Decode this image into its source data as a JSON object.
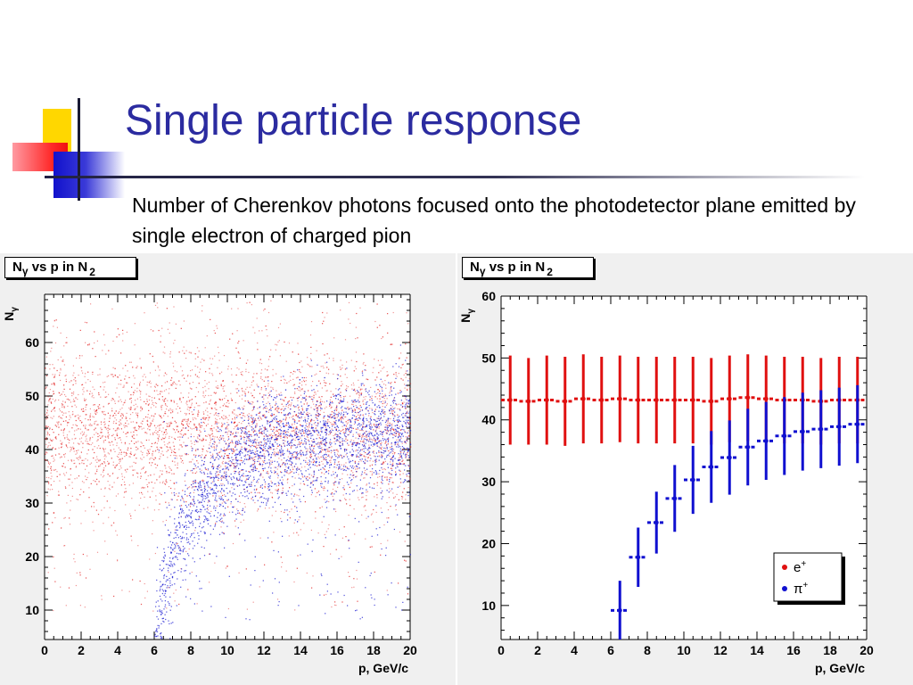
{
  "slide": {
    "title": "Single particle response",
    "subtitle": "Number of Cherenkov photons focused onto the photodetector plane emitted by single electron of charged pion"
  },
  "colors": {
    "title": "#2b2ba0",
    "electron": "#e01010",
    "pion": "#1010d0",
    "panel_bg": "#f0f0f0"
  },
  "chart_data": [
    {
      "type": "scatter",
      "title_main": "N",
      "title_sub": "γ",
      "title_rest": " vs p in N",
      "title_index": "2",
      "ylabel_main": "N",
      "ylabel_sub": "γ",
      "xlabel": "p, GeV/c",
      "xlim": [
        0,
        20
      ],
      "ylim": [
        4.5,
        69
      ],
      "xticks": [
        "0",
        "2",
        "4",
        "6",
        "8",
        "10",
        "12",
        "14",
        "16",
        "18",
        "20"
      ],
      "yticks": [
        "10",
        "20",
        "30",
        "40",
        "50",
        "60"
      ],
      "series": [
        {
          "color": "#e01010",
          "x_range": [
            0,
            20
          ],
          "y_center": 43.5,
          "y_spread": 7
        },
        {
          "color": "#1010d0",
          "onset_x": 6,
          "plateau_y": 40,
          "spread": 5
        }
      ]
    },
    {
      "type": "scatter",
      "title_main": "N",
      "title_sub": "γ",
      "title_rest": " vs p in N",
      "title_index": "2",
      "ylabel_main": "N",
      "ylabel_sub": "γ",
      "xlabel": "p, GeV/c",
      "xlim": [
        0,
        20
      ],
      "ylim": [
        4.5,
        60
      ],
      "xticks": [
        "0",
        "2",
        "4",
        "6",
        "8",
        "10",
        "12",
        "14",
        "16",
        "18",
        "20"
      ],
      "yticks": [
        "10",
        "20",
        "30",
        "40",
        "50",
        "60"
      ],
      "legend_position": "bottom-right",
      "series": [
        {
          "name": "e",
          "name_sup": "+",
          "color": "#e01010",
          "x": [
            0.5,
            1.5,
            2.5,
            3.5,
            4.5,
            5.5,
            6.5,
            7.5,
            8.5,
            9.5,
            10.5,
            11.5,
            12.5,
            13.5,
            14.5,
            15.5,
            16.5,
            17.5,
            18.5,
            19.5
          ],
          "y": [
            43.2,
            43.0,
            43.2,
            43.0,
            43.4,
            43.2,
            43.4,
            43.2,
            43.2,
            43.2,
            43.2,
            43.0,
            43.4,
            43.6,
            43.4,
            43.2,
            43.2,
            43.0,
            43.2,
            43.2
          ],
          "err": [
            7.2,
            7.0,
            7.2,
            7.2,
            7.2,
            7.0,
            7.0,
            7.0,
            7.0,
            7.0,
            7.0,
            7.0,
            7.0,
            7.0,
            7.0,
            7.0,
            7.0,
            7.0,
            7.0,
            7.0
          ]
        },
        {
          "name": "π",
          "name_sup": "+",
          "color": "#1010d0",
          "x": [
            6.5,
            7.5,
            8.5,
            9.5,
            10.5,
            11.5,
            12.5,
            13.5,
            14.5,
            15.5,
            16.5,
            17.5,
            18.5,
            19.5
          ],
          "y": [
            9.2,
            17.8,
            23.4,
            27.3,
            30.3,
            32.4,
            33.9,
            35.6,
            36.6,
            37.4,
            38.1,
            38.5,
            38.9,
            39.3
          ],
          "err": [
            4.8,
            4.8,
            5.0,
            5.4,
            5.5,
            5.8,
            6.0,
            6.2,
            6.3,
            6.3,
            6.3,
            6.3,
            6.3,
            6.3
          ]
        }
      ]
    }
  ]
}
